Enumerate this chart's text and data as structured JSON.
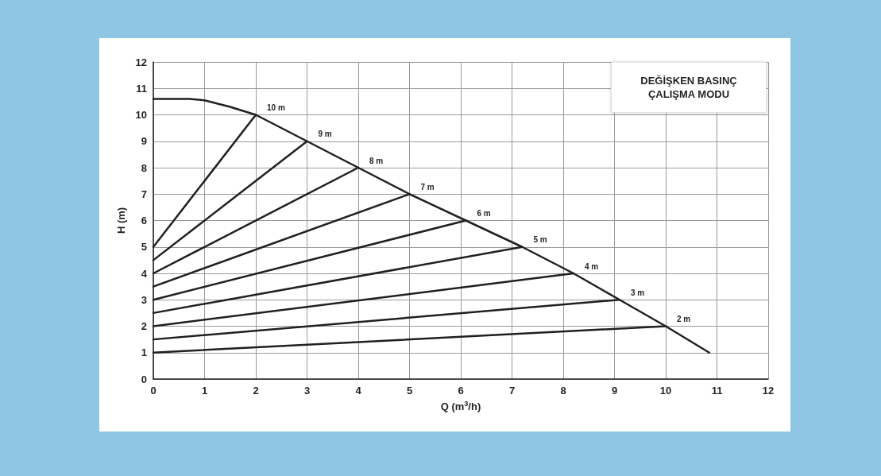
{
  "chart_data": {
    "type": "line",
    "xlabel": "Q (m$^{3}$/h)",
    "ylabel": "H (m)",
    "xlim": [
      0,
      12
    ],
    "ylim": [
      0,
      12
    ],
    "xticks": [
      0,
      1,
      2,
      3,
      4,
      5,
      6,
      7,
      8,
      9,
      10,
      11,
      12
    ],
    "yticks": [
      0,
      1,
      2,
      3,
      4,
      5,
      6,
      7,
      8,
      9,
      10,
      11,
      12
    ],
    "grid": true,
    "marker": "none",
    "line_style": "solid",
    "annotations": [
      "DEĞİŞKEN BASINÇ",
      "ÇALIŞMA MODU"
    ],
    "series": [
      {
        "color": "#231f20",
        "x": [
          0,
          0.7,
          1,
          1.5,
          2,
          3,
          4,
          5,
          6.1,
          7.2,
          8.2,
          9.1,
          10,
          10.85
        ],
        "values": [
          10.6,
          10.6,
          10.55,
          10.3,
          10,
          9,
          8,
          7,
          6,
          5,
          4,
          3,
          2,
          1
        ]
      },
      {
        "name": "10 m",
        "color": "#231f20",
        "x": [
          0,
          2
        ],
        "values": [
          5,
          10
        ]
      },
      {
        "name": "9 m",
        "color": "#231f20",
        "x": [
          0,
          3
        ],
        "values": [
          4.5,
          9
        ]
      },
      {
        "name": "8 m",
        "color": "#231f20",
        "x": [
          0,
          4
        ],
        "values": [
          4,
          8
        ]
      },
      {
        "name": "7 m",
        "color": "#231f20",
        "x": [
          0,
          5
        ],
        "values": [
          3.5,
          7
        ]
      },
      {
        "name": "6 m",
        "color": "#231f20",
        "x": [
          0,
          6.1
        ],
        "values": [
          3,
          6
        ]
      },
      {
        "name": "5 m",
        "color": "#231f20",
        "x": [
          0,
          7.2
        ],
        "values": [
          2.5,
          5
        ]
      },
      {
        "name": "4 m",
        "color": "#231f20",
        "x": [
          0,
          8.2
        ],
        "values": [
          2,
          4
        ]
      },
      {
        "name": "3 m",
        "color": "#231f20",
        "x": [
          0,
          9.1
        ],
        "values": [
          1.5,
          3
        ]
      },
      {
        "name": "2 m",
        "color": "#231f20",
        "x": [
          0,
          10
        ],
        "values": [
          1,
          2
        ]
      }
    ]
  }
}
